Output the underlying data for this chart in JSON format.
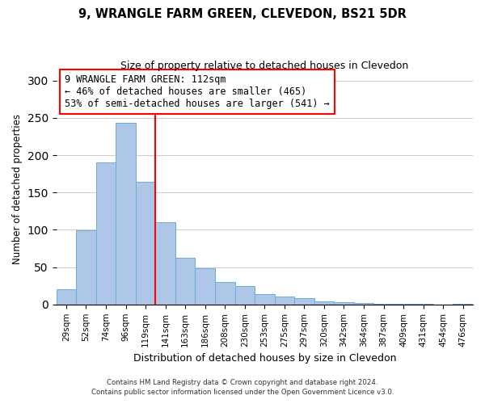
{
  "title": "9, WRANGLE FARM GREEN, CLEVEDON, BS21 5DR",
  "subtitle": "Size of property relative to detached houses in Clevedon",
  "xlabel": "Distribution of detached houses by size in Clevedon",
  "ylabel": "Number of detached properties",
  "bar_labels": [
    "29sqm",
    "52sqm",
    "74sqm",
    "96sqm",
    "119sqm",
    "141sqm",
    "163sqm",
    "186sqm",
    "208sqm",
    "230sqm",
    "253sqm",
    "275sqm",
    "297sqm",
    "320sqm",
    "342sqm",
    "364sqm",
    "387sqm",
    "409sqm",
    "431sqm",
    "454sqm",
    "476sqm"
  ],
  "bar_values": [
    20,
    99,
    190,
    243,
    164,
    110,
    63,
    48,
    30,
    25,
    14,
    11,
    8,
    4,
    3,
    2,
    1,
    1,
    1,
    0,
    1
  ],
  "bar_color": "#aec6e8",
  "bar_edge_color": "#6baed6",
  "vline_color": "red",
  "vline_x": 4.5,
  "annotation_text": "9 WRANGLE FARM GREEN: 112sqm\n← 46% of detached houses are smaller (465)\n53% of semi-detached houses are larger (541) →",
  "ylim": [
    0,
    310
  ],
  "footnote1": "Contains HM Land Registry data © Crown copyright and database right 2024.",
  "footnote2": "Contains public sector information licensed under the Open Government Licence v3.0."
}
